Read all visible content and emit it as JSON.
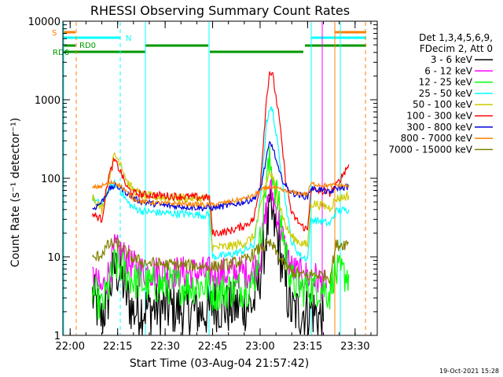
{
  "chart_data": {
    "type": "line",
    "title": "RHESSI Observing Summary Count Rates",
    "xlabel": "Start Time (03-Aug-04 21:57:42)",
    "ylabel": "Count Rate (s⁻¹ detector⁻¹)",
    "y_scale": "log",
    "ylim": [
      1,
      10000
    ],
    "y_ticks": [
      {
        "value": 1,
        "label": "1"
      },
      {
        "value": 10,
        "label": "10"
      },
      {
        "value": 100,
        "label": "100"
      },
      {
        "value": 1000,
        "label": "1000"
      },
      {
        "value": 10000,
        "label": "10000"
      }
    ],
    "xlim": [
      "21:57:42",
      "23:37:00"
    ],
    "x_ticks": [
      "22:00",
      "22:15",
      "22:30",
      "22:45",
      "23:00",
      "23:15",
      "23:30"
    ],
    "grid": false,
    "legend_position": "right",
    "legend_header": [
      "Det 1,3,4,5,6,9,",
      "FDecim 2, Att 0"
    ],
    "footer": "19-Oct-2021 15:28",
    "flags": [
      {
        "label": "S",
        "color": "#ff8000"
      },
      {
        "label": "N",
        "color": "#00ffff"
      },
      {
        "label": "RD0",
        "color": "#009900"
      },
      {
        "label": "RD6",
        "color": "#009900"
      }
    ],
    "series": [
      {
        "name": "3 - 6 keV",
        "color": "#000000",
        "points": [
          [
            "22:07",
            3.2
          ],
          [
            "22:10",
            1.6
          ],
          [
            "22:12",
            3
          ],
          [
            "22:14",
            7
          ],
          [
            "22:16",
            6
          ],
          [
            "22:18",
            3
          ],
          [
            "22:20",
            2
          ],
          [
            "22:22",
            2.2
          ],
          [
            "22:30",
            2.2
          ],
          [
            "22:38",
            2.1
          ],
          [
            "22:42",
            2
          ],
          [
            "22:44",
            2
          ],
          [
            "22:45",
            2.5
          ],
          [
            "22:50",
            2.2
          ],
          [
            "22:55",
            2.4
          ],
          [
            "22:58",
            2.5
          ],
          [
            "23:00",
            6
          ],
          [
            "23:02",
            20
          ],
          [
            "23:03",
            35
          ],
          [
            "23:04",
            30
          ],
          [
            "23:06",
            14
          ],
          [
            "23:08",
            4
          ],
          [
            "23:10",
            2
          ],
          [
            "23:13",
            2
          ],
          [
            "23:16",
            2.2
          ],
          [
            "23:20",
            1.5
          ]
        ]
      },
      {
        "name": "6 - 12 keV",
        "color": "#ff00ff",
        "points": [
          [
            "22:07",
            5.5
          ],
          [
            "22:10",
            3.7
          ],
          [
            "22:12",
            6
          ],
          [
            "22:14",
            12
          ],
          [
            "22:16",
            11.5
          ],
          [
            "22:18",
            9
          ],
          [
            "22:20",
            7.5
          ],
          [
            "22:23",
            6.5
          ],
          [
            "22:30",
            6.4
          ],
          [
            "22:40",
            6.3
          ],
          [
            "22:44",
            6.2
          ],
          [
            "22:45",
            6
          ],
          [
            "22:50",
            6.2
          ],
          [
            "22:55",
            6.4
          ],
          [
            "22:58",
            6.8
          ],
          [
            "23:00",
            10
          ],
          [
            "23:02",
            40
          ],
          [
            "23:03",
            70
          ],
          [
            "23:04",
            60
          ],
          [
            "23:06",
            28
          ],
          [
            "23:08",
            12
          ],
          [
            "23:10",
            7
          ],
          [
            "23:13",
            5.8
          ],
          [
            "23:16",
            5.5
          ],
          [
            "23:18",
            5.3
          ],
          [
            "23:20",
            4.2
          ],
          [
            "23:21",
            4
          ]
        ]
      },
      {
        "name": "12 - 25 keV",
        "color": "#00ff00",
        "points": [
          [
            "22:07",
            3.8
          ],
          [
            "22:10",
            2.2
          ],
          [
            "22:12",
            4
          ],
          [
            "22:14",
            8
          ],
          [
            "22:16",
            7.5
          ],
          [
            "22:18",
            6
          ],
          [
            "22:20",
            5
          ],
          [
            "22:23",
            4.5
          ],
          [
            "22:30",
            4.3
          ],
          [
            "22:38",
            4.3
          ],
          [
            "22:42",
            4.3
          ],
          [
            "22:44",
            4.2
          ],
          [
            "22:45",
            3.5
          ],
          [
            "22:50",
            3.8
          ],
          [
            "22:55",
            4
          ],
          [
            "22:58",
            4.5
          ],
          [
            "23:00",
            15
          ],
          [
            "23:02",
            100
          ],
          [
            "23:03",
            150
          ],
          [
            "23:04",
            120
          ],
          [
            "23:06",
            40
          ],
          [
            "23:08",
            12
          ],
          [
            "23:10",
            5
          ],
          [
            "23:13",
            4
          ],
          [
            "23:16",
            4
          ],
          [
            "23:20",
            4
          ],
          [
            "23:22",
            3.5
          ],
          [
            "23:23",
            6
          ],
          [
            "23:28",
            6
          ]
        ]
      },
      {
        "name": "25 - 50 keV",
        "color": "#00ffff",
        "points": [
          [
            "22:07",
            55
          ],
          [
            "22:10",
            45
          ],
          [
            "22:12",
            70
          ],
          [
            "22:14",
            85
          ],
          [
            "22:16",
            70
          ],
          [
            "22:18",
            50
          ],
          [
            "22:20",
            42
          ],
          [
            "22:23",
            38
          ],
          [
            "22:30",
            36
          ],
          [
            "22:38",
            35
          ],
          [
            "22:42",
            34
          ],
          [
            "22:44",
            34
          ],
          [
            "22:45",
            10
          ],
          [
            "22:50",
            10.5
          ],
          [
            "22:55",
            12
          ],
          [
            "22:58",
            14
          ],
          [
            "23:00",
            50
          ],
          [
            "23:02",
            500
          ],
          [
            "23:03",
            800
          ],
          [
            "23:04",
            700
          ],
          [
            "23:06",
            200
          ],
          [
            "23:08",
            50
          ],
          [
            "23:10",
            15
          ],
          [
            "23:13",
            10
          ],
          [
            "23:15",
            9.5
          ],
          [
            "23:16",
            30
          ],
          [
            "23:20",
            28
          ],
          [
            "23:22",
            26
          ],
          [
            "23:24",
            38
          ],
          [
            "23:28",
            40
          ]
        ]
      },
      {
        "name": "50 - 100 keV",
        "color": "#cccc00",
        "points": [
          [
            "22:07",
            60
          ],
          [
            "22:10",
            40
          ],
          [
            "22:12",
            90
          ],
          [
            "22:14",
            200
          ],
          [
            "22:16",
            160
          ],
          [
            "22:18",
            90
          ],
          [
            "22:20",
            70
          ],
          [
            "22:23",
            60
          ],
          [
            "22:30",
            57
          ],
          [
            "22:38",
            56
          ],
          [
            "22:42",
            55
          ],
          [
            "22:44",
            55
          ],
          [
            "22:45",
            13
          ],
          [
            "22:50",
            13.5
          ],
          [
            "22:55",
            15
          ],
          [
            "22:58",
            18
          ],
          [
            "23:00",
            40
          ],
          [
            "23:02",
            90
          ],
          [
            "23:03",
            120
          ],
          [
            "23:04",
            100
          ],
          [
            "23:06",
            50
          ],
          [
            "23:08",
            25
          ],
          [
            "23:10",
            18
          ],
          [
            "23:13",
            15
          ],
          [
            "23:15",
            14
          ],
          [
            "23:16",
            48
          ],
          [
            "23:20",
            45
          ],
          [
            "23:22",
            42
          ],
          [
            "23:24",
            55
          ],
          [
            "23:28",
            60
          ]
        ]
      },
      {
        "name": "100 - 300 keV",
        "color": "#ff0000",
        "points": [
          [
            "22:07",
            35
          ],
          [
            "22:10",
            30
          ],
          [
            "22:12",
            100
          ],
          [
            "22:14",
            170
          ],
          [
            "22:16",
            120
          ],
          [
            "22:18",
            75
          ],
          [
            "22:20",
            65
          ],
          [
            "22:23",
            62
          ],
          [
            "22:30",
            60
          ],
          [
            "22:38",
            58
          ],
          [
            "22:42",
            57
          ],
          [
            "22:44",
            57
          ],
          [
            "22:45",
            20
          ],
          [
            "22:50",
            21
          ],
          [
            "22:55",
            25
          ],
          [
            "22:58",
            30
          ],
          [
            "23:00",
            80
          ],
          [
            "23:02",
            1000
          ],
          [
            "23:03",
            2300
          ],
          [
            "23:04",
            2000
          ],
          [
            "23:06",
            600
          ],
          [
            "23:08",
            100
          ],
          [
            "23:10",
            35
          ],
          [
            "23:13",
            25
          ],
          [
            "23:15",
            22
          ],
          [
            "23:16",
            70
          ],
          [
            "23:20",
            68
          ],
          [
            "23:22",
            65
          ],
          [
            "23:24",
            80
          ],
          [
            "23:28",
            150
          ]
        ]
      },
      {
        "name": "300 - 800 keV",
        "color": "#0000dd",
        "points": [
          [
            "22:07",
            40
          ],
          [
            "22:10",
            50
          ],
          [
            "22:12",
            70
          ],
          [
            "22:14",
            80
          ],
          [
            "22:16",
            75
          ],
          [
            "22:18",
            65
          ],
          [
            "22:20",
            55
          ],
          [
            "22:23",
            50
          ],
          [
            "22:30",
            45
          ],
          [
            "22:38",
            43
          ],
          [
            "22:42",
            42
          ],
          [
            "22:44",
            42
          ],
          [
            "22:45",
            42
          ],
          [
            "22:50",
            45
          ],
          [
            "22:55",
            50
          ],
          [
            "22:58",
            55
          ],
          [
            "23:00",
            70
          ],
          [
            "23:02",
            180
          ],
          [
            "23:03",
            280
          ],
          [
            "23:04",
            250
          ],
          [
            "23:06",
            120
          ],
          [
            "23:08",
            80
          ],
          [
            "23:10",
            65
          ],
          [
            "23:13",
            60
          ],
          [
            "23:15",
            58
          ],
          [
            "23:16",
            75
          ],
          [
            "23:20",
            70
          ],
          [
            "23:22",
            65
          ],
          [
            "23:24",
            75
          ],
          [
            "23:28",
            78
          ]
        ]
      },
      {
        "name": "800 - 7000 keV",
        "color": "#ff8000",
        "points": [
          [
            "22:07",
            75
          ],
          [
            "22:10",
            80
          ],
          [
            "22:12",
            85
          ],
          [
            "22:14",
            90
          ],
          [
            "22:16",
            80
          ],
          [
            "22:18",
            65
          ],
          [
            "22:20",
            55
          ],
          [
            "22:23",
            50
          ],
          [
            "22:30",
            48
          ],
          [
            "22:38",
            47
          ],
          [
            "22:42",
            46
          ],
          [
            "22:44",
            46
          ],
          [
            "22:45",
            46
          ],
          [
            "22:50",
            50
          ],
          [
            "22:55",
            55
          ],
          [
            "22:58",
            60
          ],
          [
            "23:00",
            70
          ],
          [
            "23:02",
            75
          ],
          [
            "23:03",
            78
          ],
          [
            "23:04",
            76
          ],
          [
            "23:06",
            72
          ],
          [
            "23:08",
            68
          ],
          [
            "23:10",
            66
          ],
          [
            "23:13",
            64
          ],
          [
            "23:15",
            63
          ],
          [
            "23:16",
            85
          ],
          [
            "23:20",
            82
          ],
          [
            "23:22",
            80
          ],
          [
            "23:24",
            82
          ],
          [
            "23:28",
            80
          ]
        ]
      },
      {
        "name": "7000 - 15000 keV",
        "color": "#808000",
        "points": [
          [
            "22:07",
            9
          ],
          [
            "22:10",
            11
          ],
          [
            "22:12",
            14
          ],
          [
            "22:14",
            15
          ],
          [
            "22:16",
            13.5
          ],
          [
            "22:18",
            11
          ],
          [
            "22:20",
            9.5
          ],
          [
            "22:23",
            8.5
          ],
          [
            "22:30",
            8
          ],
          [
            "22:38",
            7.8
          ],
          [
            "22:42",
            7.6
          ],
          [
            "22:44",
            7.5
          ],
          [
            "22:45",
            7.5
          ],
          [
            "22:50",
            8
          ],
          [
            "22:55",
            9
          ],
          [
            "22:58",
            11
          ],
          [
            "23:00",
            13
          ],
          [
            "23:02",
            14
          ],
          [
            "23:03",
            14.5
          ],
          [
            "23:04",
            13.5
          ],
          [
            "23:06",
            10
          ],
          [
            "23:08",
            7.5
          ],
          [
            "23:10",
            6.5
          ],
          [
            "23:13",
            6
          ],
          [
            "23:15",
            5.5
          ],
          [
            "23:16",
            6
          ],
          [
            "23:20",
            5.8
          ],
          [
            "23:22",
            5.5
          ],
          [
            "23:24",
            14
          ],
          [
            "23:28",
            15
          ]
        ]
      }
    ]
  }
}
